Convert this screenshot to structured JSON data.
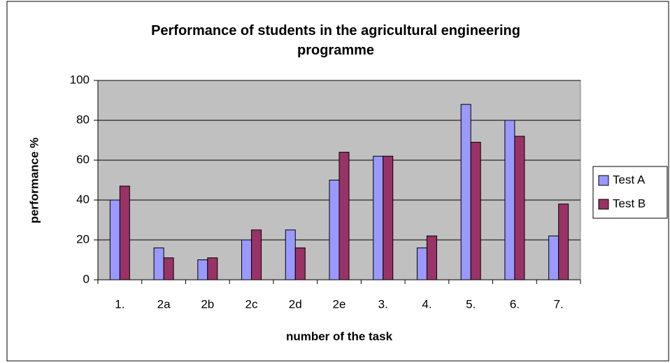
{
  "chart_data": {
    "type": "bar",
    "title": "Performance of students in the agricultural engineering programme",
    "x_label": "number of the task",
    "y_label": "performance %",
    "categories": [
      "1.",
      "2a",
      "2b",
      "2c",
      "2d",
      "2e",
      "3.",
      "4.",
      "5.",
      "6.",
      "7."
    ],
    "series": [
      {
        "name": "Test A",
        "color": "#9999ff",
        "values": [
          40,
          16,
          10,
          20,
          25,
          50,
          62,
          16,
          88,
          80,
          22
        ]
      },
      {
        "name": "Test B",
        "color": "#993366",
        "values": [
          47,
          11,
          11,
          25,
          16,
          64,
          62,
          22,
          69,
          72,
          38
        ]
      }
    ],
    "ylim": [
      0,
      100
    ],
    "yticks": [
      0,
      20,
      40,
      60,
      80,
      100
    ],
    "grid": true,
    "legend": "right"
  }
}
